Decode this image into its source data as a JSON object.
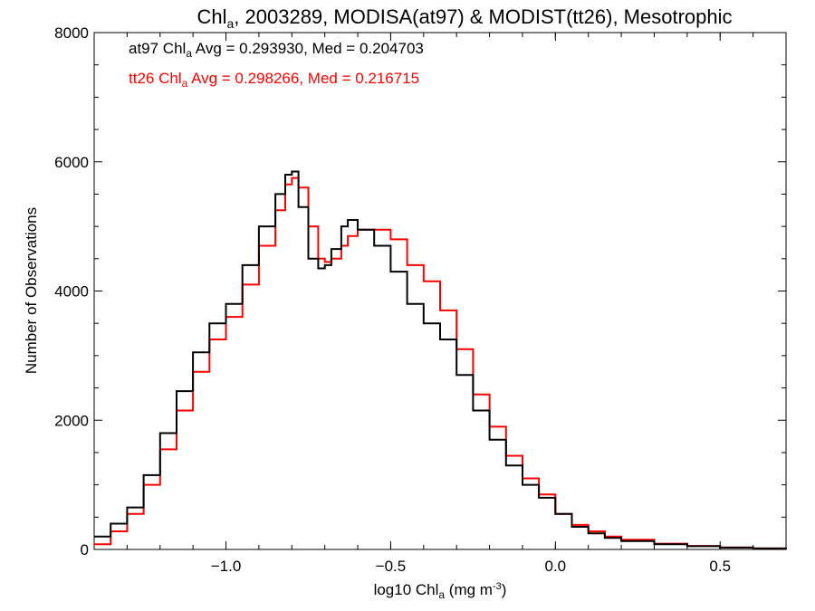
{
  "chart_data": {
    "type": "line",
    "title": {
      "main": "Chl",
      "sub": "a",
      "rest": ", 2003289, MODISA(at97) & MODIST(tt26), Mesotrophic"
    },
    "xlabel": {
      "pre": "log10 Chl",
      "sub": "a",
      "mid": " (mg m",
      "sup": "-3",
      "post": ")"
    },
    "ylabel": "Number of Observations",
    "xlim": [
      -1.4,
      0.7
    ],
    "ylim": [
      0,
      8000
    ],
    "x_ticks": [
      -1.0,
      -0.5,
      0.0,
      0.5
    ],
    "x_tick_labels": [
      "−1.0",
      "−0.5",
      "0.0",
      "0.5"
    ],
    "y_ticks": [
      0,
      2000,
      4000,
      6000,
      8000
    ],
    "y_tick_labels": [
      "0",
      "2000",
      "4000",
      "6000",
      "8000"
    ],
    "annotations": [
      {
        "series": "at97",
        "label_pre": "at97 Chl",
        "label_sub": "a",
        "label_post": " Avg = 0.293930, Med = 0.204703",
        "color": "#000000"
      },
      {
        "series": "tt26",
        "label_pre": "tt26 Chl",
        "label_sub": "a",
        "label_post": " Avg = 0.298266, Med = 0.216715",
        "color": "#ff0000"
      }
    ],
    "series": [
      {
        "name": "at97",
        "color": "#000000",
        "x": [
          -1.4,
          -1.35,
          -1.3,
          -1.25,
          -1.2,
          -1.15,
          -1.1,
          -1.05,
          -1.0,
          -0.95,
          -0.9,
          -0.85,
          -0.82,
          -0.8,
          -0.78,
          -0.75,
          -0.72,
          -0.7,
          -0.68,
          -0.65,
          -0.63,
          -0.6,
          -0.55,
          -0.5,
          -0.45,
          -0.4,
          -0.35,
          -0.3,
          -0.25,
          -0.2,
          -0.15,
          -0.1,
          -0.05,
          0.0,
          0.05,
          0.1,
          0.15,
          0.2,
          0.3,
          0.4,
          0.5,
          0.6,
          0.7
        ],
        "y": [
          200,
          400,
          650,
          1150,
          1800,
          2450,
          3050,
          3500,
          3800,
          4400,
          5000,
          5500,
          5800,
          5850,
          5300,
          4500,
          4350,
          4400,
          4650,
          5000,
          5100,
          4950,
          4700,
          4300,
          3800,
          3500,
          3250,
          2700,
          2150,
          1700,
          1300,
          1000,
          800,
          550,
          350,
          250,
          180,
          130,
          80,
          50,
          30,
          15,
          5
        ]
      },
      {
        "name": "tt26",
        "color": "#ff0000",
        "x": [
          -1.4,
          -1.35,
          -1.3,
          -1.25,
          -1.2,
          -1.15,
          -1.1,
          -1.05,
          -1.0,
          -0.95,
          -0.9,
          -0.85,
          -0.82,
          -0.8,
          -0.78,
          -0.75,
          -0.72,
          -0.7,
          -0.68,
          -0.65,
          -0.63,
          -0.6,
          -0.55,
          -0.5,
          -0.45,
          -0.4,
          -0.35,
          -0.3,
          -0.25,
          -0.2,
          -0.15,
          -0.1,
          -0.05,
          0.0,
          0.05,
          0.1,
          0.15,
          0.2,
          0.3,
          0.4,
          0.5,
          0.6,
          0.7
        ],
        "y": [
          80,
          280,
          550,
          1000,
          1550,
          2150,
          2750,
          3250,
          3600,
          4100,
          4700,
          5250,
          5650,
          5750,
          5600,
          5000,
          4500,
          4450,
          4500,
          4700,
          4850,
          4950,
          4950,
          4800,
          4400,
          4150,
          3700,
          3100,
          2400,
          1900,
          1450,
          1100,
          850,
          550,
          380,
          280,
          200,
          150,
          90,
          55,
          30,
          15,
          5
        ]
      }
    ],
    "grid": false,
    "legend": "top-left"
  }
}
